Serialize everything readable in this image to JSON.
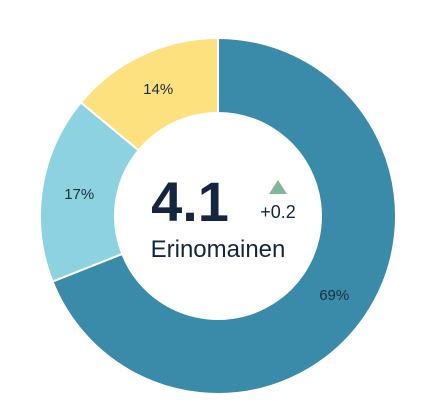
{
  "chart_data": {
    "type": "pie",
    "categories": [
      "",
      "",
      ""
    ],
    "values": [
      69,
      17,
      14
    ],
    "labels": [
      "69%",
      "17%",
      "14%"
    ],
    "colors": [
      "#3a8aa9",
      "#8dd2e1",
      "#fde17f"
    ],
    "center": {
      "value": "4.1",
      "delta": "+0.2",
      "caption": "Erinomainen",
      "delta_color": "#82b69a"
    }
  }
}
